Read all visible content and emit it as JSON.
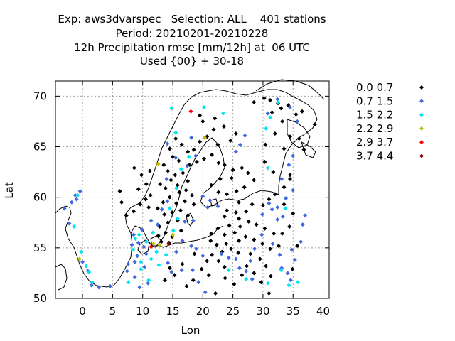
{
  "header": {
    "line1": "Exp: aws3dvarspec   Selection: ALL    401 stations",
    "line2": "Period: 20210201-20210228",
    "line3": "12h Precipitation rmse [mm/12h] at  06 UTC",
    "line4": "Used {00} + 30-18"
  },
  "chart_data": {
    "type": "scatter",
    "xlabel": "Lon",
    "ylabel": "Lat",
    "xlim": [
      -4.5,
      41
    ],
    "ylim": [
      50,
      71.5
    ],
    "xticks": [
      0,
      5,
      10,
      15,
      20,
      25,
      30,
      35,
      40
    ],
    "yticks": [
      50,
      55,
      60,
      65,
      70
    ],
    "grid": true,
    "legend_position": "right",
    "legend": [
      {
        "label": "0.0 0.7",
        "color": "#000000"
      },
      {
        "label": "0.7 1.5",
        "color": "#4169e1"
      },
      {
        "label": "1.5 2.2",
        "color": "#00e5ee"
      },
      {
        "label": "2.2 2.9",
        "color": "#c0c000"
      },
      {
        "label": "2.9 3.7",
        "color": "#ff0000"
      },
      {
        "label": "3.7 4.4",
        "color": "#8b0000"
      }
    ],
    "series": [
      {
        "color": "#000000",
        "points": [
          [
            30.2,
            69.8
          ],
          [
            31.2,
            69.6
          ],
          [
            32.5,
            69.3
          ],
          [
            34.2,
            69.1
          ],
          [
            28.5,
            69.4
          ],
          [
            33,
            68.8
          ],
          [
            35.5,
            68.2
          ],
          [
            36.5,
            68.5
          ],
          [
            38.6,
            67.2
          ],
          [
            31.5,
            68.4
          ],
          [
            33.2,
            67.5
          ],
          [
            32,
            66.3
          ],
          [
            34.5,
            66
          ],
          [
            36,
            65.8
          ],
          [
            33.5,
            64.8
          ],
          [
            36.8,
            64.7
          ],
          [
            30.4,
            65.2
          ],
          [
            30.3,
            63.5
          ],
          [
            31.7,
            62.5
          ],
          [
            34.5,
            62.2
          ],
          [
            33.5,
            61
          ],
          [
            34.5,
            61.8
          ],
          [
            32,
            60.3
          ],
          [
            33.5,
            59.3
          ],
          [
            31,
            59.8
          ],
          [
            30,
            59.2
          ],
          [
            20,
            67.5
          ],
          [
            22,
            67.8
          ],
          [
            19.5,
            68.1
          ],
          [
            21.8,
            66.7
          ],
          [
            23.5,
            67
          ],
          [
            25.5,
            66.3
          ],
          [
            24.6,
            65.6
          ],
          [
            22.5,
            65.2
          ],
          [
            20.7,
            66
          ],
          [
            19.5,
            65.5
          ],
          [
            18.5,
            64.7
          ],
          [
            17.5,
            64.5
          ],
          [
            16.5,
            65.2
          ],
          [
            15.5,
            65.8
          ],
          [
            14.5,
            64.8
          ],
          [
            15,
            64
          ],
          [
            16,
            63.6
          ],
          [
            17.8,
            63.2
          ],
          [
            19,
            63.5
          ],
          [
            20.2,
            63.8
          ],
          [
            21.5,
            64.2
          ],
          [
            22.6,
            63.4
          ],
          [
            23.6,
            63.2
          ],
          [
            25,
            62.7
          ],
          [
            26.5,
            62.9
          ],
          [
            27.5,
            62.4
          ],
          [
            28.5,
            61.7
          ],
          [
            26.9,
            61
          ],
          [
            25.6,
            60.6
          ],
          [
            24,
            60.3
          ],
          [
            22.6,
            60.5
          ],
          [
            21.4,
            61.2
          ],
          [
            22.9,
            61.8
          ],
          [
            24.8,
            61.9
          ],
          [
            26,
            59.5
          ],
          [
            28.2,
            59.3
          ],
          [
            13.5,
            63.2
          ],
          [
            14.2,
            62.6
          ],
          [
            15.4,
            62.2
          ],
          [
            16.7,
            62.4
          ],
          [
            17.5,
            61.6
          ],
          [
            15.8,
            61.2
          ],
          [
            14.7,
            61.7
          ],
          [
            13.8,
            60.9
          ],
          [
            12.9,
            61.3
          ],
          [
            16.1,
            60.5
          ],
          [
            17.2,
            60.7
          ],
          [
            18.2,
            60.2
          ],
          [
            14.5,
            60
          ],
          [
            13.4,
            59.5
          ],
          [
            15.6,
            59.4
          ],
          [
            17,
            59.6
          ],
          [
            18.5,
            59.3
          ],
          [
            16.3,
            58.7
          ],
          [
            14.9,
            58.5
          ],
          [
            13.6,
            58.3
          ],
          [
            12.5,
            58.9
          ],
          [
            17.5,
            58.2
          ],
          [
            15.8,
            57.7
          ],
          [
            14.2,
            57.5
          ],
          [
            12.8,
            57.1
          ],
          [
            16.4,
            56.7
          ],
          [
            13.8,
            56.5
          ],
          [
            12.6,
            56.2
          ],
          [
            14.9,
            56.1
          ],
          [
            13.1,
            55.6
          ],
          [
            14.4,
            55.5
          ],
          [
            8.6,
            62.9
          ],
          [
            9.8,
            62.2
          ],
          [
            11.2,
            62.6
          ],
          [
            10.6,
            61.3
          ],
          [
            9.3,
            60.8
          ],
          [
            11.3,
            60.2
          ],
          [
            10.5,
            59.8
          ],
          [
            9.6,
            59.3
          ],
          [
            11,
            59
          ],
          [
            8.5,
            58.6
          ],
          [
            7.3,
            58.2
          ],
          [
            6.5,
            59.5
          ],
          [
            6.2,
            60.6
          ],
          [
            24,
            58.7
          ],
          [
            25.5,
            58.5
          ],
          [
            27.2,
            58.6
          ],
          [
            23.6,
            58.1
          ],
          [
            26,
            57.9
          ],
          [
            24.4,
            57.2
          ],
          [
            26.2,
            57.1
          ],
          [
            27.6,
            57.6
          ],
          [
            22.5,
            56.9
          ],
          [
            21.4,
            56.4
          ],
          [
            23.6,
            56.3
          ],
          [
            25.3,
            56.5
          ],
          [
            27.1,
            56.1
          ],
          [
            26,
            55.7
          ],
          [
            23.9,
            55.4
          ],
          [
            22.3,
            55.3
          ],
          [
            21.3,
            55.7
          ],
          [
            24.7,
            54.9
          ],
          [
            25.9,
            54.5
          ],
          [
            23.2,
            54.6
          ],
          [
            22.6,
            53.7
          ],
          [
            23.6,
            53.1
          ],
          [
            21.5,
            54.3
          ],
          [
            20.7,
            53.7
          ],
          [
            18.6,
            54.4
          ],
          [
            19.8,
            52.9
          ],
          [
            21,
            52.3
          ],
          [
            18.4,
            51.8
          ],
          [
            28.9,
            57.3
          ],
          [
            30.3,
            56.9
          ],
          [
            31.8,
            56.4
          ],
          [
            28.5,
            55.8
          ],
          [
            29.9,
            55.4
          ],
          [
            31.2,
            54.9
          ],
          [
            32.6,
            55.2
          ],
          [
            27.9,
            54.4
          ],
          [
            29.5,
            53.9
          ],
          [
            30.5,
            53.2
          ],
          [
            28.5,
            52.5
          ],
          [
            31.3,
            52.2
          ],
          [
            29.7,
            51.6
          ],
          [
            27.3,
            53.2
          ],
          [
            26.5,
            52.3
          ],
          [
            25.2,
            51.4
          ],
          [
            23.7,
            52
          ],
          [
            15.3,
            52.3
          ],
          [
            16.6,
            53.4
          ],
          [
            14.5,
            53
          ],
          [
            13.7,
            51.8
          ],
          [
            17.3,
            51.2
          ],
          [
            22.1,
            50.5
          ],
          [
            31,
            50.5
          ],
          [
            34.9,
            52.9
          ],
          [
            35.7,
            55.2
          ],
          [
            33.2,
            56.4
          ],
          [
            34.4,
            57.1
          ],
          [
            35,
            58.4
          ]
        ]
      },
      {
        "color": "#4169e1",
        "points": [
          [
            -3,
            58.9
          ],
          [
            -1.8,
            59.5
          ],
          [
            -1.2,
            60.2
          ],
          [
            -0.4,
            60.6
          ],
          [
            -1,
            59.8
          ],
          [
            -2.2,
            57.4
          ],
          [
            0,
            53.6
          ],
          [
            0.9,
            52.7
          ],
          [
            1.5,
            51.3
          ],
          [
            2.7,
            51.1
          ],
          [
            4.6,
            51.2
          ],
          [
            8.5,
            56.3
          ],
          [
            9.3,
            55.5
          ],
          [
            9.9,
            56.8
          ],
          [
            10.2,
            55.1
          ],
          [
            8.2,
            55.3
          ],
          [
            9.1,
            54.2
          ],
          [
            10.6,
            54.4
          ],
          [
            8.7,
            53.6
          ],
          [
            7.6,
            53.4
          ],
          [
            10.3,
            53.1
          ],
          [
            8.7,
            52.1
          ],
          [
            7.4,
            52.7
          ],
          [
            10.9,
            51.5
          ],
          [
            9.5,
            51.1
          ],
          [
            11.4,
            57.7
          ],
          [
            12.5,
            57.3
          ],
          [
            13.2,
            58.8
          ],
          [
            14.1,
            59.6
          ],
          [
            17,
            57.6
          ],
          [
            18.4,
            57.7
          ],
          [
            16.6,
            55.7
          ],
          [
            18.9,
            54.9
          ],
          [
            20,
            54.2
          ],
          [
            18.1,
            55.2
          ],
          [
            15.6,
            54.6
          ],
          [
            14.2,
            53.5
          ],
          [
            16.5,
            52.8
          ],
          [
            14.8,
            52.6
          ],
          [
            18.3,
            52.8
          ],
          [
            19.3,
            51.6
          ],
          [
            20.4,
            50.6
          ],
          [
            23.1,
            54.4
          ],
          [
            24.3,
            54
          ],
          [
            25.5,
            53.9
          ],
          [
            26.1,
            53
          ],
          [
            27.2,
            52.7
          ],
          [
            28.2,
            51.9
          ],
          [
            27.9,
            53.7
          ],
          [
            28.6,
            54.9
          ],
          [
            29.8,
            56.3
          ],
          [
            31.6,
            55.4
          ],
          [
            32.8,
            54.3
          ],
          [
            33.1,
            53
          ],
          [
            34.1,
            52.5
          ],
          [
            34.6,
            51.8
          ],
          [
            35.3,
            53.8
          ],
          [
            34.8,
            54.8
          ],
          [
            36.3,
            55.6
          ],
          [
            36.6,
            57.3
          ],
          [
            37,
            58.2
          ],
          [
            32.4,
            57.8
          ],
          [
            33.3,
            58.1
          ],
          [
            31.5,
            58.8
          ],
          [
            29.9,
            58.3
          ],
          [
            31,
            59.4
          ],
          [
            32.4,
            59
          ],
          [
            33.8,
            59.9
          ],
          [
            35,
            60.7
          ],
          [
            33.1,
            61.8
          ],
          [
            34.3,
            63.2
          ],
          [
            35,
            64.1
          ],
          [
            35.7,
            67.5
          ],
          [
            34.5,
            68.9
          ],
          [
            30.8,
            68.3
          ],
          [
            32.4,
            69.7
          ],
          [
            25.5,
            64.5
          ],
          [
            26.2,
            65.2
          ],
          [
            27,
            66.1
          ],
          [
            18.1,
            65.9
          ],
          [
            18.8,
            64.1
          ],
          [
            17.4,
            63.1
          ],
          [
            15.5,
            63.9
          ],
          [
            14.1,
            65.3
          ],
          [
            14,
            61.8
          ],
          [
            20,
            60.1
          ],
          [
            20.8,
            59
          ],
          [
            21.2,
            59.7
          ],
          [
            22.5,
            59.1
          ]
        ]
      },
      {
        "color": "#00e5ee",
        "points": [
          [
            -0.2,
            54.6
          ],
          [
            0.6,
            53.2
          ],
          [
            1.1,
            52.6
          ],
          [
            1.6,
            51.6
          ],
          [
            -1.4,
            57.1
          ],
          [
            -0.8,
            60.2
          ],
          [
            8.8,
            55.9
          ],
          [
            9.4,
            56.3
          ],
          [
            10.6,
            55.6
          ],
          [
            11.7,
            56.5
          ],
          [
            8.4,
            54.8
          ],
          [
            9.7,
            53.6
          ],
          [
            12.7,
            53.3
          ],
          [
            13.9,
            54.3
          ],
          [
            11.4,
            53.9
          ],
          [
            12.3,
            54.6
          ],
          [
            11,
            51.8
          ],
          [
            9.7,
            52.9
          ],
          [
            7.6,
            51.6
          ],
          [
            15.1,
            56.7
          ],
          [
            15.8,
            57.9
          ],
          [
            14.5,
            58.9
          ],
          [
            15.6,
            60.9
          ],
          [
            16.4,
            62.8
          ],
          [
            17.7,
            64
          ],
          [
            15.5,
            66.4
          ],
          [
            14.8,
            68.8
          ],
          [
            20.2,
            68.9
          ],
          [
            23.4,
            68.3
          ],
          [
            30.8,
            62.9
          ],
          [
            30.5,
            66.8
          ],
          [
            31.2,
            67.9
          ],
          [
            32.5,
            69.4
          ],
          [
            24.3,
            52.8
          ],
          [
            27.2,
            51.9
          ],
          [
            30.8,
            51.5
          ],
          [
            33,
            52.8
          ],
          [
            34.3,
            51.3
          ],
          [
            35.8,
            51.6
          ],
          [
            33.7,
            58.9
          ]
        ]
      },
      {
        "color": "#c0c000",
        "points": [
          [
            -0.5,
            53.9
          ],
          [
            11.8,
            55.4
          ],
          [
            12.8,
            55.3
          ],
          [
            15,
            56.3
          ],
          [
            12.6,
            63.3
          ],
          [
            20.3,
            65.9
          ]
        ]
      },
      {
        "color": "#ff0000",
        "points": [
          [
            11.4,
            55.1
          ],
          [
            18,
            68.5
          ]
        ]
      },
      {
        "color": "#8b0000",
        "points": [
          [
            14.3,
            55.4
          ]
        ]
      }
    ]
  }
}
